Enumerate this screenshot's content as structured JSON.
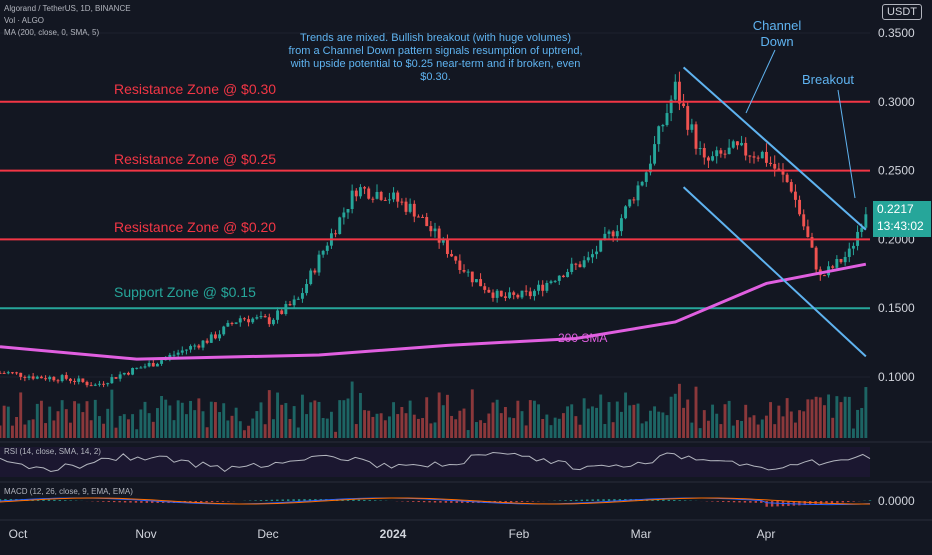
{
  "header": {
    "symbol_line": "Algorand / TetherUS, 1D, BINANCE",
    "vol_line": "Vol · ALGO",
    "ma_line": "MA (200, close, 0, SMA, 5)",
    "currency": "USDT"
  },
  "indicators": {
    "rsi_label": "RSI (14, close, SMA, 14, 2)",
    "macd_label": "MACD (12, 26, close, 9, EMA, EMA)"
  },
  "annotations": {
    "commentary": "Trends are mixed. Bullish breakout (with huge volumes) from a Channel Down pattern signals resumption of uptrend, with upside potential to $0.25 near-term and if broken, even $0.30.",
    "channel_down": "Channel\nDown",
    "breakout": "Breakout",
    "sma_label": "200 SMA"
  },
  "zones": [
    {
      "label": "Resistance Zone @ $0.30",
      "price": 0.3,
      "color": "#f23645"
    },
    {
      "label": "Resistance Zone @ $0.25",
      "price": 0.25,
      "color": "#f23645"
    },
    {
      "label": "Resistance Zone @ $0.20",
      "price": 0.2,
      "color": "#f23645"
    },
    {
      "label": "Support Zone @ $0.15",
      "price": 0.15,
      "color": "#26a69a"
    }
  ],
  "price_tag": {
    "price": "0.2217",
    "countdown": "13:43:02",
    "color": "#26a69a"
  },
  "colors": {
    "background": "#131722",
    "up": "#26a69a",
    "down": "#ef5350",
    "sma": "#e05fe0",
    "channel": "#5fb3f0",
    "rsi": "#b2b5be",
    "macd": "#2962ff",
    "signal": "#ff6d00"
  },
  "chart_data": {
    "type": "candlestick",
    "x_ticks": [
      "Oct",
      "Nov",
      "Dec",
      "2024",
      "Feb",
      "Mar",
      "Apr"
    ],
    "y_ticks": [
      "0.3500",
      "0.3000",
      "0.2500",
      "0.2000",
      "0.1500",
      "0.1000"
    ],
    "macd_tick": "0.0000",
    "ylim": [
      0.05,
      0.36
    ],
    "x_range": [
      "2023-09-29",
      "2024-04-26"
    ],
    "close_series": [
      {
        "date": "2023-10-01",
        "close": 0.103
      },
      {
        "date": "2023-10-08",
        "close": 0.1
      },
      {
        "date": "2023-10-15",
        "close": 0.099
      },
      {
        "date": "2023-10-22",
        "close": 0.094
      },
      {
        "date": "2023-10-29",
        "close": 0.103
      },
      {
        "date": "2023-11-05",
        "close": 0.11
      },
      {
        "date": "2023-11-12",
        "close": 0.119
      },
      {
        "date": "2023-11-19",
        "close": 0.128
      },
      {
        "date": "2023-11-26",
        "close": 0.143
      },
      {
        "date": "2023-12-03",
        "close": 0.141
      },
      {
        "date": "2023-12-10",
        "close": 0.156
      },
      {
        "date": "2023-12-17",
        "close": 0.198
      },
      {
        "date": "2023-12-24",
        "close": 0.237
      },
      {
        "date": "2023-12-31",
        "close": 0.233
      },
      {
        "date": "2024-01-07",
        "close": 0.221
      },
      {
        "date": "2024-01-14",
        "close": 0.196
      },
      {
        "date": "2024-01-21",
        "close": 0.172
      },
      {
        "date": "2024-01-28",
        "close": 0.157
      },
      {
        "date": "2024-02-04",
        "close": 0.16
      },
      {
        "date": "2024-02-11",
        "close": 0.175
      },
      {
        "date": "2024-02-18",
        "close": 0.185
      },
      {
        "date": "2024-02-25",
        "close": 0.21
      },
      {
        "date": "2024-03-03",
        "close": 0.25
      },
      {
        "date": "2024-03-10",
        "close": 0.31
      },
      {
        "date": "2024-03-17",
        "close": 0.255
      },
      {
        "date": "2024-03-24",
        "close": 0.265
      },
      {
        "date": "2024-03-31",
        "close": 0.262
      },
      {
        "date": "2024-04-07",
        "close": 0.238
      },
      {
        "date": "2024-04-14",
        "close": 0.172
      },
      {
        "date": "2024-04-21",
        "close": 0.19
      },
      {
        "date": "2024-04-25",
        "close": 0.2217
      }
    ],
    "sma200": [
      {
        "date": "2023-09-29",
        "value": 0.122
      },
      {
        "date": "2023-11-01",
        "value": 0.113
      },
      {
        "date": "2023-12-15",
        "value": 0.116
      },
      {
        "date": "2024-01-15",
        "value": 0.123
      },
      {
        "date": "2024-02-15",
        "value": 0.128
      },
      {
        "date": "2024-03-10",
        "value": 0.14
      },
      {
        "date": "2024-04-01",
        "value": 0.168
      },
      {
        "date": "2024-04-25",
        "value": 0.182
      }
    ],
    "channel_upper": [
      {
        "date": "2024-03-12",
        "value": 0.325
      },
      {
        "date": "2024-04-25",
        "value": 0.207
      }
    ],
    "channel_lower": [
      {
        "date": "2024-03-12",
        "value": 0.238
      },
      {
        "date": "2024-04-25",
        "value": 0.115
      }
    ]
  }
}
